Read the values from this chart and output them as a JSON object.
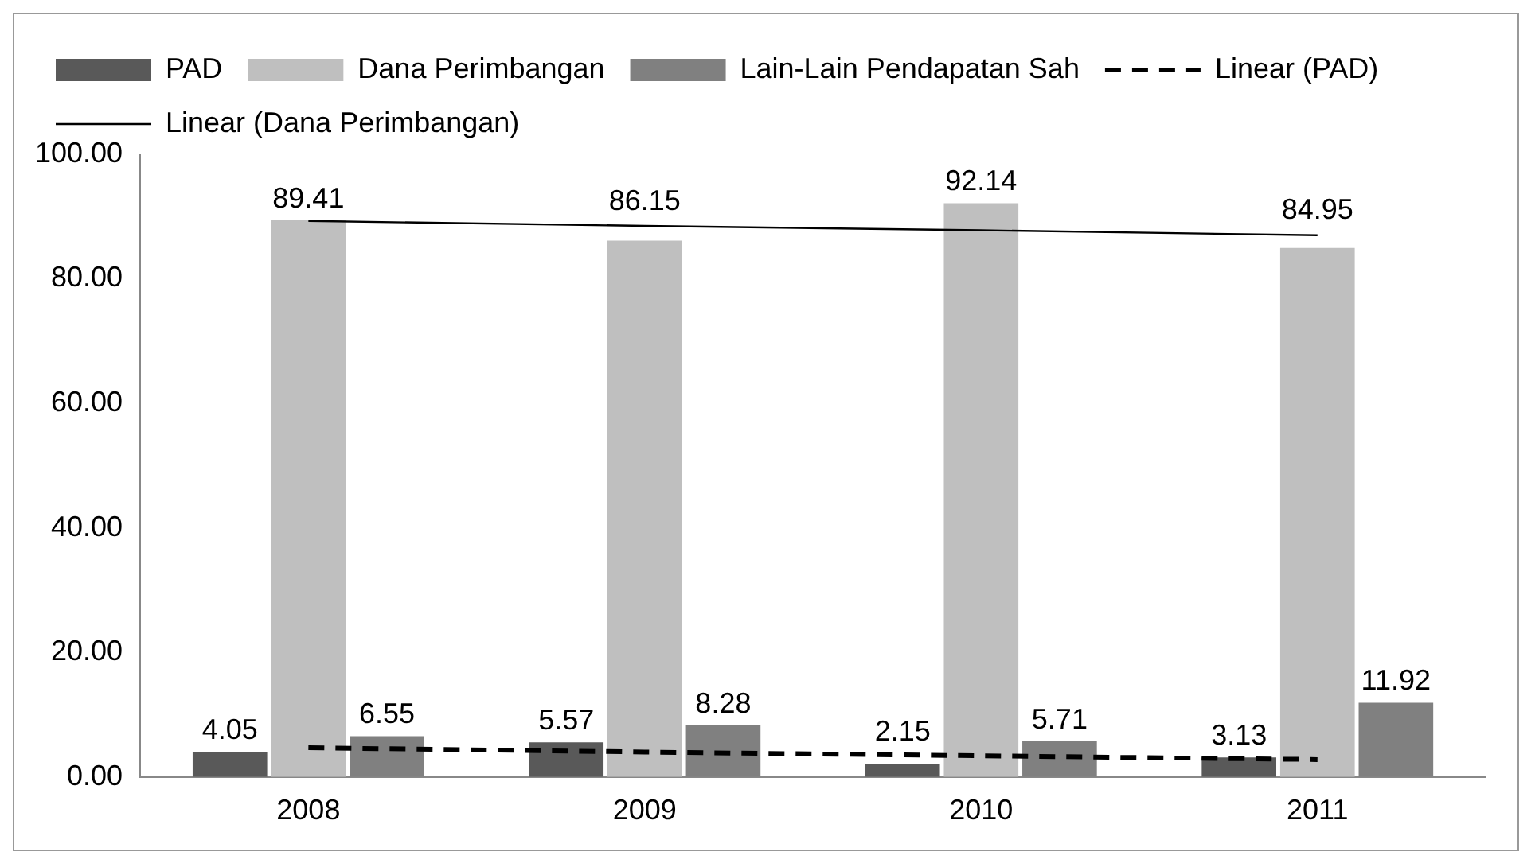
{
  "chart_data": {
    "type": "bar",
    "categories": [
      "2008",
      "2009",
      "2010",
      "2011"
    ],
    "series": [
      {
        "name": "PAD",
        "color": "#595959",
        "values": [
          4.05,
          5.57,
          2.15,
          3.13
        ],
        "value_labels": [
          "4.05",
          "5.57",
          "2.15",
          "3.13"
        ]
      },
      {
        "name": "Dana Perimbangan",
        "color": "#bfbfbf",
        "values": [
          89.41,
          86.15,
          92.14,
          84.95
        ],
        "value_labels": [
          "89.41",
          "86.15",
          "92.14",
          "84.95"
        ]
      },
      {
        "name": "Lain-Lain Pendapatan Sah",
        "color": "#808080",
        "values": [
          6.55,
          8.28,
          5.71,
          11.92
        ],
        "value_labels": [
          "6.55",
          "8.28",
          "5.71",
          "11.92"
        ]
      },
      {
        "name": "Linear (PAD)",
        "type": "line",
        "color": "#000000",
        "line_style": "dashed",
        "marker": "none",
        "values": [
          4.7,
          4.0,
          3.4,
          2.8
        ]
      },
      {
        "name": "Linear (Dana Perimbangan)",
        "type": "line",
        "color": "#000000",
        "line_style": "solid",
        "marker": "none",
        "values": [
          89.3,
          88.5,
          87.8,
          87.0
        ]
      }
    ],
    "ylim": [
      0,
      100
    ],
    "yticks": [
      {
        "value": 0,
        "label": "0.00"
      },
      {
        "value": 20,
        "label": "20.00"
      },
      {
        "value": 40,
        "label": "40.00"
      },
      {
        "value": 60,
        "label": "60.00"
      },
      {
        "value": 80,
        "label": "80.00"
      },
      {
        "value": 100,
        "label": "100.00"
      }
    ],
    "grid": false,
    "legend": "top"
  }
}
